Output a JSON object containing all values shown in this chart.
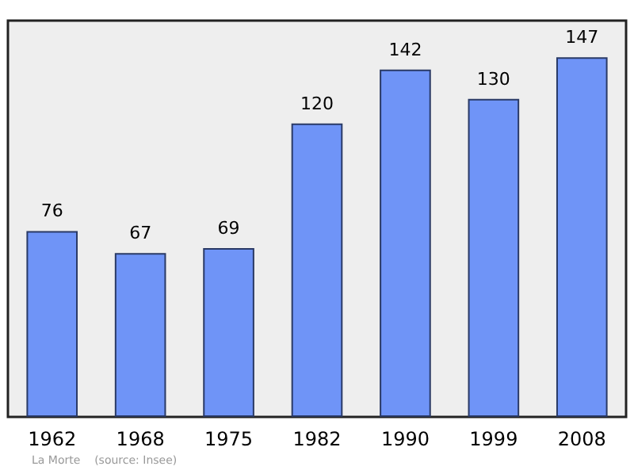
{
  "chart_data": {
    "type": "bar",
    "categories": [
      "1962",
      "1968",
      "1975",
      "1982",
      "1990",
      "1999",
      "2008"
    ],
    "values": [
      76,
      67,
      69,
      120,
      142,
      130,
      147
    ],
    "color": "#6f94f7",
    "ylim": [
      0,
      162
    ],
    "data_labels": true,
    "grid": false,
    "tick_labels": "x",
    "annotations": [
      "La Morte    (source: Insee)"
    ]
  }
}
